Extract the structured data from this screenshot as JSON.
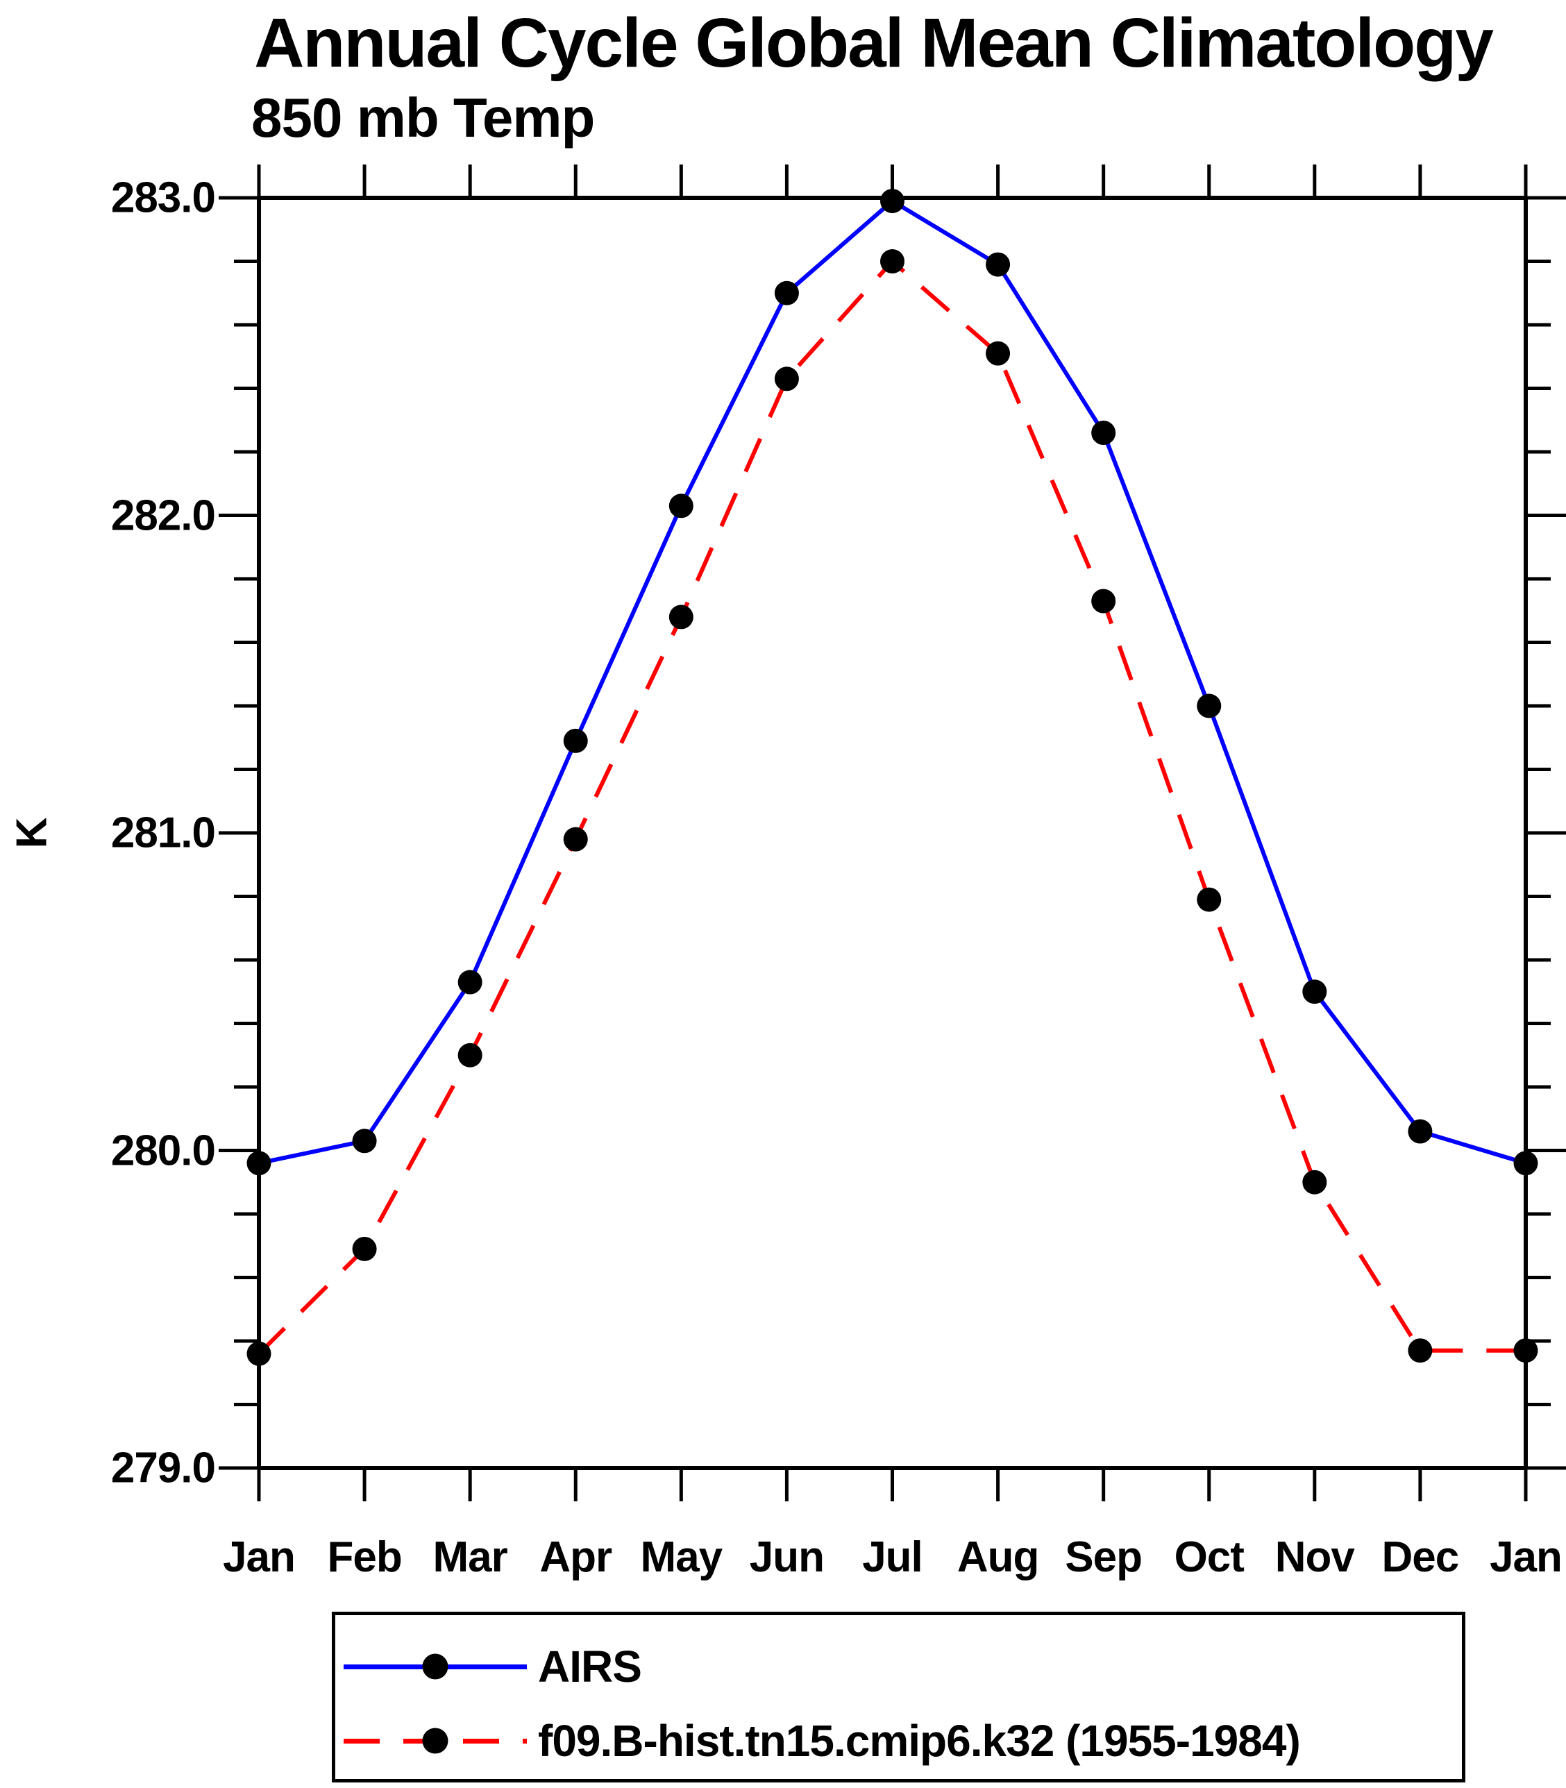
{
  "title": "Annual Cycle Global Mean Climatology",
  "subtitle": "850 mb Temp",
  "y_axis": {
    "label": "K",
    "tick_labels": [
      "283.0",
      "282.0",
      "281.0",
      "280.0",
      "279.0"
    ],
    "tick_values": [
      283.0,
      282.0,
      281.0,
      280.0,
      279.0
    ],
    "minor_step": 0.2
  },
  "x_axis": {
    "tick_labels": [
      "Jan",
      "Feb",
      "Mar",
      "Apr",
      "May",
      "Jun",
      "Jul",
      "Aug",
      "Sep",
      "Oct",
      "Nov",
      "Dec",
      "Jan"
    ]
  },
  "legend": {
    "position": "bottom",
    "entries": [
      {
        "label": "AIRS",
        "color": "#0000ff",
        "style": "solid",
        "marker": "filled-circle"
      },
      {
        "label": "f09.B-hist.tn15.cmip6.k32 (1955-1984)",
        "color": "#ff0000",
        "style": "dashed",
        "marker": "filled-circle"
      }
    ]
  },
  "colors": {
    "airs_line": "#0000ff",
    "model_line": "#ff0000",
    "marker": "#000000",
    "axis": "#000000",
    "background": "#ffffff"
  },
  "chart_data": {
    "type": "line",
    "title": "Annual Cycle Global Mean Climatology",
    "subtitle": "850 mb Temp",
    "ylabel": "K",
    "xlabel": "",
    "ylim": [
      279.0,
      283.0
    ],
    "y_major_tick_step": 1.0,
    "y_minor_tick_step": 0.2,
    "grid": false,
    "legend_position": "bottom",
    "categories": [
      "Jan",
      "Feb",
      "Mar",
      "Apr",
      "May",
      "Jun",
      "Jul",
      "Aug",
      "Sep",
      "Oct",
      "Nov",
      "Dec",
      "Jan"
    ],
    "series": [
      {
        "name": "AIRS",
        "color": "#0000ff",
        "line_style": "solid",
        "marker": "filled-circle",
        "values": [
          279.96,
          280.03,
          280.53,
          281.29,
          282.03,
          282.7,
          282.99,
          282.79,
          282.26,
          281.4,
          280.5,
          280.06,
          279.96
        ]
      },
      {
        "name": "f09.B-hist.tn15.cmip6.k32 (1955-1984)",
        "color": "#ff0000",
        "line_style": "dashed",
        "marker": "filled-circle",
        "values": [
          279.36,
          279.69,
          280.3,
          280.98,
          281.68,
          282.43,
          282.8,
          282.51,
          281.73,
          280.79,
          279.9,
          279.37,
          279.37
        ]
      }
    ]
  }
}
